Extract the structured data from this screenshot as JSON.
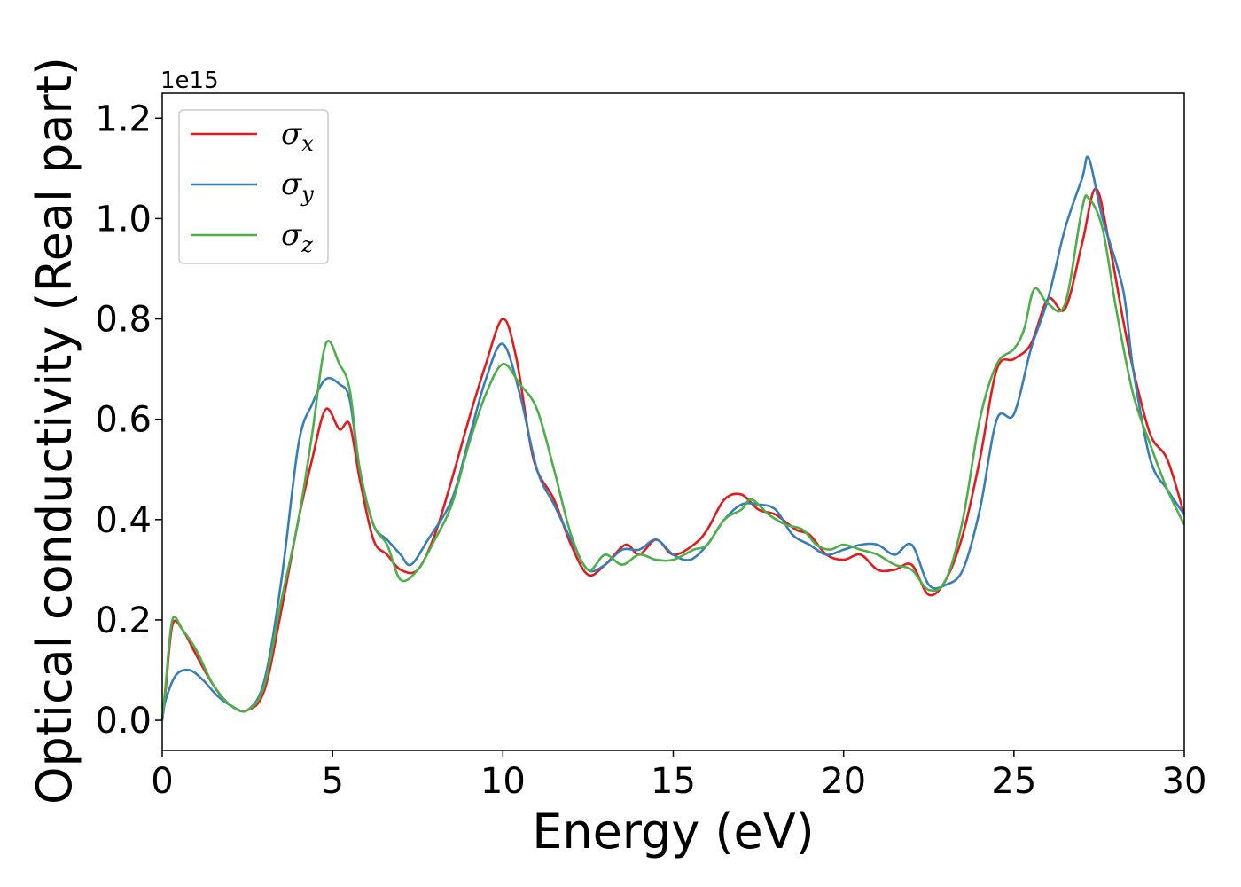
{
  "chart_data": {
    "type": "line",
    "title": "",
    "xlabel": "Energy (eV)",
    "ylabel": "Optical conductivity (Real part)",
    "y_offset_label": "1e15",
    "y_scale_factor": 1000000000000000.0,
    "xlim": [
      0,
      30
    ],
    "ylim": [
      -0.06,
      1.25
    ],
    "x_ticks": [
      0,
      5,
      10,
      15,
      20,
      25,
      30
    ],
    "x_tick_labels": [
      "0",
      "5",
      "10",
      "15",
      "20",
      "25",
      "30"
    ],
    "y_ticks": [
      0.0,
      0.2,
      0.4,
      0.6,
      0.8,
      1.0,
      1.2
    ],
    "y_tick_labels": [
      "0.0",
      "0.2",
      "0.4",
      "0.6",
      "0.8",
      "1.0",
      "1.2"
    ],
    "grid": false,
    "legend_position": "top-left",
    "series": [
      {
        "name": "σx",
        "symbol": "σ",
        "subscript": "x",
        "color": "#e41a1c",
        "points": [
          [
            0,
            0.0
          ],
          [
            0.1,
            0.06
          ],
          [
            0.3,
            0.19
          ],
          [
            0.6,
            0.18
          ],
          [
            1.0,
            0.13
          ],
          [
            1.5,
            0.07
          ],
          [
            2.0,
            0.03
          ],
          [
            2.5,
            0.02
          ],
          [
            3.0,
            0.06
          ],
          [
            3.5,
            0.22
          ],
          [
            4.0,
            0.4
          ],
          [
            4.4,
            0.52
          ],
          [
            4.8,
            0.62
          ],
          [
            5.2,
            0.58
          ],
          [
            5.5,
            0.59
          ],
          [
            5.8,
            0.48
          ],
          [
            6.2,
            0.36
          ],
          [
            6.6,
            0.33
          ],
          [
            7.0,
            0.3
          ],
          [
            7.5,
            0.3
          ],
          [
            8.0,
            0.37
          ],
          [
            8.5,
            0.48
          ],
          [
            9.0,
            0.6
          ],
          [
            9.5,
            0.71
          ],
          [
            10.0,
            0.8
          ],
          [
            10.4,
            0.72
          ],
          [
            10.9,
            0.52
          ],
          [
            11.5,
            0.44
          ],
          [
            12.0,
            0.35
          ],
          [
            12.5,
            0.29
          ],
          [
            13.0,
            0.31
          ],
          [
            13.6,
            0.35
          ],
          [
            14.0,
            0.33
          ],
          [
            14.5,
            0.36
          ],
          [
            15.0,
            0.33
          ],
          [
            15.6,
            0.35
          ],
          [
            16.0,
            0.38
          ],
          [
            16.5,
            0.44
          ],
          [
            17.0,
            0.45
          ],
          [
            17.5,
            0.42
          ],
          [
            18.0,
            0.41
          ],
          [
            18.6,
            0.38
          ],
          [
            19.0,
            0.37
          ],
          [
            19.5,
            0.33
          ],
          [
            20.0,
            0.32
          ],
          [
            20.5,
            0.33
          ],
          [
            21.0,
            0.3
          ],
          [
            21.5,
            0.3
          ],
          [
            22.0,
            0.31
          ],
          [
            22.5,
            0.25
          ],
          [
            23.0,
            0.28
          ],
          [
            23.5,
            0.37
          ],
          [
            24.0,
            0.52
          ],
          [
            24.5,
            0.7
          ],
          [
            25.0,
            0.72
          ],
          [
            25.5,
            0.75
          ],
          [
            26.0,
            0.84
          ],
          [
            26.5,
            0.82
          ],
          [
            27.0,
            0.95
          ],
          [
            27.4,
            1.06
          ],
          [
            27.8,
            0.95
          ],
          [
            28.2,
            0.8
          ],
          [
            28.5,
            0.7
          ],
          [
            29.0,
            0.57
          ],
          [
            29.5,
            0.52
          ],
          [
            30.0,
            0.41
          ]
        ]
      },
      {
        "name": "σy",
        "symbol": "σ",
        "subscript": "y",
        "color": "#377eb8",
        "points": [
          [
            0,
            0.0
          ],
          [
            0.1,
            0.04
          ],
          [
            0.4,
            0.09
          ],
          [
            0.8,
            0.1
          ],
          [
            1.2,
            0.08
          ],
          [
            1.6,
            0.05
          ],
          [
            2.0,
            0.03
          ],
          [
            2.5,
            0.02
          ],
          [
            3.0,
            0.08
          ],
          [
            3.5,
            0.28
          ],
          [
            4.0,
            0.55
          ],
          [
            4.4,
            0.63
          ],
          [
            4.8,
            0.68
          ],
          [
            5.2,
            0.67
          ],
          [
            5.5,
            0.64
          ],
          [
            5.8,
            0.5
          ],
          [
            6.2,
            0.39
          ],
          [
            6.6,
            0.36
          ],
          [
            7.0,
            0.33
          ],
          [
            7.3,
            0.31
          ],
          [
            7.8,
            0.36
          ],
          [
            8.5,
            0.44
          ],
          [
            9.0,
            0.56
          ],
          [
            9.5,
            0.68
          ],
          [
            10.0,
            0.75
          ],
          [
            10.5,
            0.65
          ],
          [
            11.0,
            0.5
          ],
          [
            11.5,
            0.43
          ],
          [
            12.0,
            0.36
          ],
          [
            12.5,
            0.3
          ],
          [
            13.0,
            0.31
          ],
          [
            13.5,
            0.34
          ],
          [
            14.0,
            0.34
          ],
          [
            14.5,
            0.36
          ],
          [
            15.0,
            0.33
          ],
          [
            15.5,
            0.32
          ],
          [
            16.0,
            0.35
          ],
          [
            16.5,
            0.4
          ],
          [
            17.0,
            0.43
          ],
          [
            17.5,
            0.43
          ],
          [
            18.0,
            0.42
          ],
          [
            18.5,
            0.37
          ],
          [
            19.0,
            0.35
          ],
          [
            19.5,
            0.33
          ],
          [
            20.0,
            0.34
          ],
          [
            20.5,
            0.35
          ],
          [
            21.0,
            0.35
          ],
          [
            21.5,
            0.33
          ],
          [
            22.0,
            0.35
          ],
          [
            22.5,
            0.27
          ],
          [
            23.0,
            0.27
          ],
          [
            23.5,
            0.3
          ],
          [
            24.0,
            0.42
          ],
          [
            24.5,
            0.6
          ],
          [
            25.0,
            0.61
          ],
          [
            25.5,
            0.74
          ],
          [
            26.0,
            0.84
          ],
          [
            26.5,
            0.98
          ],
          [
            27.0,
            1.08
          ],
          [
            27.2,
            1.12
          ],
          [
            27.6,
            1.0
          ],
          [
            28.2,
            0.86
          ],
          [
            28.5,
            0.7
          ],
          [
            29.0,
            0.52
          ],
          [
            29.5,
            0.46
          ],
          [
            30.0,
            0.41
          ]
        ]
      },
      {
        "name": "σz",
        "symbol": "σ",
        "subscript": "z",
        "color": "#4daf4a",
        "points": [
          [
            0,
            0.0
          ],
          [
            0.1,
            0.07
          ],
          [
            0.3,
            0.2
          ],
          [
            0.6,
            0.18
          ],
          [
            1.0,
            0.14
          ],
          [
            1.5,
            0.07
          ],
          [
            2.0,
            0.03
          ],
          [
            2.5,
            0.02
          ],
          [
            3.0,
            0.07
          ],
          [
            3.5,
            0.24
          ],
          [
            4.0,
            0.4
          ],
          [
            4.4,
            0.57
          ],
          [
            4.8,
            0.75
          ],
          [
            5.2,
            0.71
          ],
          [
            5.5,
            0.66
          ],
          [
            5.8,
            0.5
          ],
          [
            6.2,
            0.39
          ],
          [
            6.6,
            0.35
          ],
          [
            7.0,
            0.28
          ],
          [
            7.5,
            0.3
          ],
          [
            8.0,
            0.36
          ],
          [
            8.5,
            0.43
          ],
          [
            9.0,
            0.55
          ],
          [
            9.5,
            0.65
          ],
          [
            10.0,
            0.71
          ],
          [
            10.5,
            0.67
          ],
          [
            11.0,
            0.62
          ],
          [
            11.5,
            0.5
          ],
          [
            12.0,
            0.37
          ],
          [
            12.5,
            0.3
          ],
          [
            13.0,
            0.33
          ],
          [
            13.5,
            0.31
          ],
          [
            14.0,
            0.33
          ],
          [
            14.5,
            0.32
          ],
          [
            15.0,
            0.32
          ],
          [
            15.6,
            0.34
          ],
          [
            16.0,
            0.35
          ],
          [
            16.5,
            0.4
          ],
          [
            17.0,
            0.42
          ],
          [
            17.3,
            0.44
          ],
          [
            17.8,
            0.41
          ],
          [
            18.3,
            0.39
          ],
          [
            18.8,
            0.38
          ],
          [
            19.2,
            0.35
          ],
          [
            19.6,
            0.34
          ],
          [
            20.0,
            0.35
          ],
          [
            20.5,
            0.34
          ],
          [
            21.0,
            0.33
          ],
          [
            21.5,
            0.31
          ],
          [
            22.0,
            0.3
          ],
          [
            22.5,
            0.26
          ],
          [
            23.0,
            0.28
          ],
          [
            23.5,
            0.4
          ],
          [
            24.0,
            0.6
          ],
          [
            24.5,
            0.71
          ],
          [
            25.0,
            0.74
          ],
          [
            25.3,
            0.78
          ],
          [
            25.6,
            0.86
          ],
          [
            26.0,
            0.83
          ],
          [
            26.5,
            0.83
          ],
          [
            27.0,
            1.02
          ],
          [
            27.2,
            1.04
          ],
          [
            27.6,
            0.98
          ],
          [
            28.0,
            0.82
          ],
          [
            28.5,
            0.65
          ],
          [
            29.0,
            0.55
          ],
          [
            29.5,
            0.46
          ],
          [
            30.0,
            0.39
          ]
        ]
      }
    ]
  }
}
